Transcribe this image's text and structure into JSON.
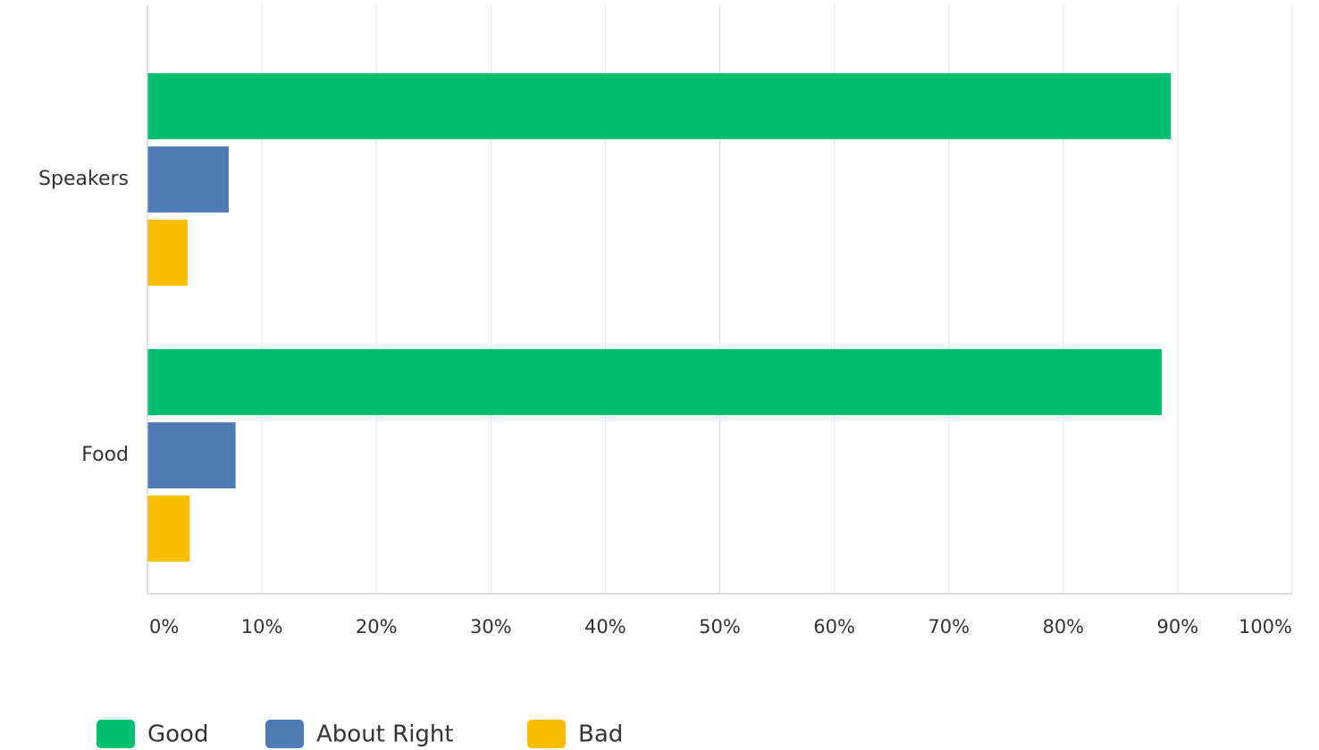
{
  "chart_data": {
    "type": "bar",
    "orientation": "horizontal",
    "categories": [
      "Speakers",
      "Food"
    ],
    "series": [
      {
        "name": "Good",
        "color": "#00bf6f",
        "values": [
          89.4,
          88.6
        ]
      },
      {
        "name": "About Right",
        "color": "#507cb6",
        "values": [
          7.1,
          7.7
        ]
      },
      {
        "name": "Bad",
        "color": "#f9be00",
        "values": [
          3.5,
          3.7
        ]
      }
    ],
    "xlim": [
      0,
      100
    ],
    "xticks": [
      0,
      10,
      20,
      30,
      40,
      50,
      60,
      70,
      80,
      90,
      100
    ],
    "xtick_labels": [
      "0%",
      "10%",
      "20%",
      "30%",
      "40%",
      "50%",
      "60%",
      "70%",
      "80%",
      "90%",
      "100%"
    ],
    "grid": true,
    "legend_position": "bottom-left"
  }
}
